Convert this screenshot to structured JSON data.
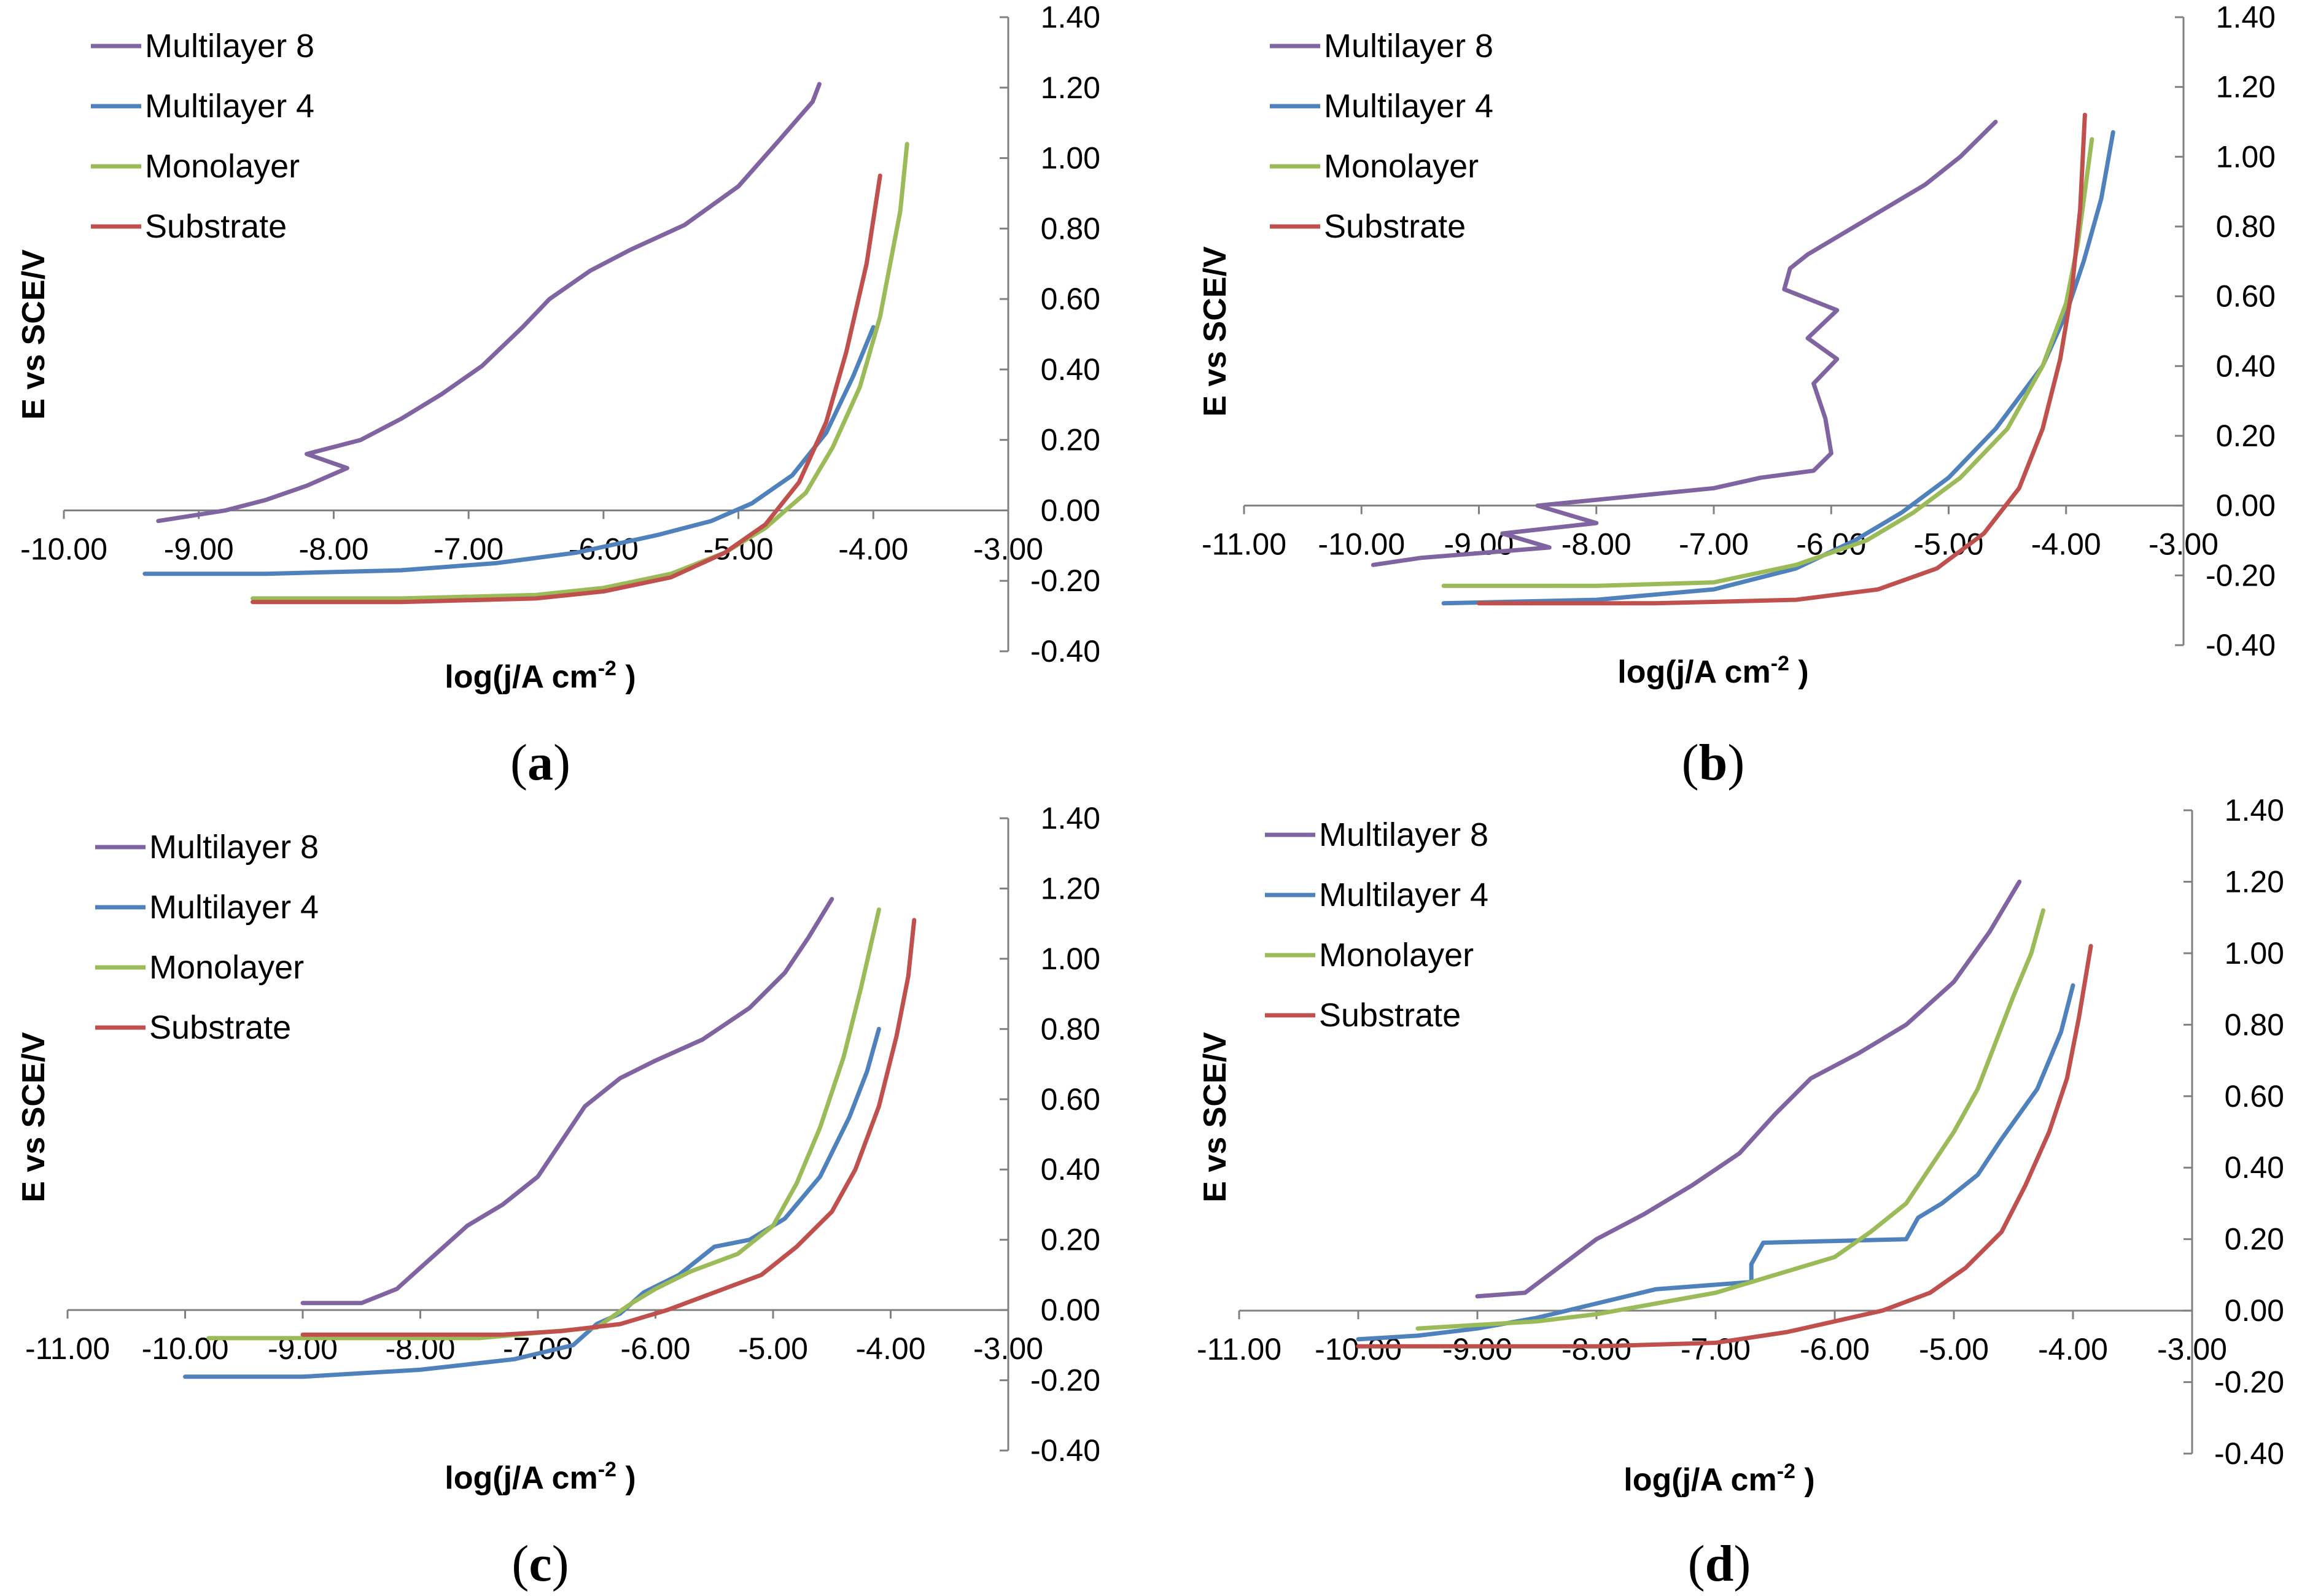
{
  "chart_data": [
    {
      "type": "line",
      "panel_label": "a",
      "xlabel": "log(j/A cm",
      "xlabel_superscript": "-2",
      "ylabel": "E vs SCE/V",
      "xlim": [
        -10.0,
        -3.0
      ],
      "ylim": [
        -0.4,
        1.4
      ],
      "x_ticks": [
        "-10.00",
        "-9.00",
        "-8.00",
        "-7.00",
        "-6.00",
        "-5.00",
        "-4.00",
        "-3.00"
      ],
      "y_ticks": [
        "-0.40",
        "-0.20",
        "0.00",
        "0.20",
        "0.40",
        "0.60",
        "0.80",
        "1.00",
        "1.20",
        "1.40"
      ],
      "legend_position": "top-left",
      "series": [
        {
          "name": "Multilayer 8",
          "color": "#8064a2",
          "x": [
            -9.3,
            -8.8,
            -8.5,
            -8.2,
            -7.9,
            -8.2,
            -7.8,
            -7.5,
            -7.2,
            -6.9,
            -6.6,
            -6.4,
            -6.1,
            -5.8,
            -5.4,
            -5.0,
            -4.7,
            -4.45,
            -4.4
          ],
          "y": [
            -0.03,
            0.0,
            0.03,
            0.07,
            0.12,
            0.16,
            0.2,
            0.26,
            0.33,
            0.41,
            0.52,
            0.6,
            0.68,
            0.74,
            0.81,
            0.92,
            1.05,
            1.16,
            1.21
          ]
        },
        {
          "name": "Multilayer 4",
          "color": "#4f81bd",
          "x": [
            -9.4,
            -8.5,
            -7.5,
            -6.8,
            -6.2,
            -5.6,
            -5.2,
            -4.9,
            -4.6,
            -4.35,
            -4.15,
            -4.0
          ],
          "y": [
            -0.18,
            -0.18,
            -0.17,
            -0.15,
            -0.12,
            -0.07,
            -0.03,
            0.02,
            0.1,
            0.22,
            0.38,
            0.52
          ]
        },
        {
          "name": "Monolayer",
          "color": "#9bbb59",
          "x": [
            -8.6,
            -7.5,
            -6.5,
            -6.0,
            -5.5,
            -5.1,
            -4.8,
            -4.5,
            -4.3,
            -4.1,
            -3.95,
            -3.8,
            -3.75
          ],
          "y": [
            -0.25,
            -0.25,
            -0.24,
            -0.22,
            -0.18,
            -0.12,
            -0.05,
            0.05,
            0.18,
            0.35,
            0.55,
            0.85,
            1.04
          ]
        },
        {
          "name": "Substrate",
          "color": "#c0504d",
          "x": [
            -8.6,
            -7.5,
            -6.5,
            -6.0,
            -5.5,
            -5.1,
            -4.8,
            -4.55,
            -4.35,
            -4.2,
            -4.05,
            -3.95
          ],
          "y": [
            -0.26,
            -0.26,
            -0.25,
            -0.23,
            -0.19,
            -0.12,
            -0.04,
            0.08,
            0.25,
            0.45,
            0.7,
            0.95
          ]
        }
      ]
    },
    {
      "type": "line",
      "panel_label": "b",
      "xlabel": "log(j/A cm",
      "xlabel_superscript": "-2",
      "ylabel": "E vs SCE/V",
      "xlim": [
        -11.0,
        -3.0
      ],
      "ylim": [
        -0.4,
        1.4
      ],
      "x_ticks": [
        "-11.00",
        "-10.00",
        "-9.00",
        "-8.00",
        "-7.00",
        "-6.00",
        "-5.00",
        "-4.00",
        "-3.00"
      ],
      "y_ticks": [
        "-0.40",
        "-0.20",
        "0.00",
        "0.20",
        "0.40",
        "0.60",
        "0.80",
        "1.00",
        "1.20",
        "1.40"
      ],
      "legend_position": "top-left",
      "series": [
        {
          "name": "Multilayer 8",
          "color": "#8064a2",
          "x": [
            -9.9,
            -9.5,
            -8.4,
            -8.8,
            -8.0,
            -8.5,
            -7.0,
            -6.6,
            -6.15,
            -6.0,
            -6.05,
            -6.15,
            -5.95,
            -6.2,
            -5.95,
            -6.4,
            -6.35,
            -6.2,
            -5.9,
            -5.6,
            -5.2,
            -4.9,
            -4.6
          ],
          "y": [
            -0.17,
            -0.15,
            -0.12,
            -0.08,
            -0.05,
            0.0,
            0.05,
            0.08,
            0.1,
            0.15,
            0.25,
            0.35,
            0.42,
            0.48,
            0.56,
            0.62,
            0.68,
            0.72,
            0.78,
            0.84,
            0.92,
            1.0,
            1.1
          ]
        },
        {
          "name": "Multilayer 4",
          "color": "#4f81bd",
          "x": [
            -9.3,
            -8.0,
            -7.0,
            -6.3,
            -5.8,
            -5.4,
            -5.0,
            -4.6,
            -4.2,
            -4.0,
            -3.85,
            -3.7,
            -3.6
          ],
          "y": [
            -0.28,
            -0.27,
            -0.24,
            -0.18,
            -0.1,
            -0.02,
            0.08,
            0.22,
            0.4,
            0.55,
            0.7,
            0.88,
            1.07
          ]
        },
        {
          "name": "Monolayer",
          "color": "#9bbb59",
          "x": [
            -9.3,
            -8.0,
            -7.0,
            -6.3,
            -5.7,
            -5.3,
            -4.9,
            -4.5,
            -4.2,
            -4.0,
            -3.9,
            -3.78
          ],
          "y": [
            -0.23,
            -0.23,
            -0.22,
            -0.17,
            -0.1,
            -0.02,
            0.08,
            0.22,
            0.4,
            0.58,
            0.75,
            1.05
          ]
        },
        {
          "name": "Substrate",
          "color": "#c0504d",
          "x": [
            -9.0,
            -7.5,
            -6.3,
            -5.6,
            -5.1,
            -4.7,
            -4.4,
            -4.2,
            -4.05,
            -3.95,
            -3.88,
            -3.84
          ],
          "y": [
            -0.28,
            -0.28,
            -0.27,
            -0.24,
            -0.18,
            -0.08,
            0.05,
            0.22,
            0.42,
            0.62,
            0.85,
            1.12
          ]
        }
      ]
    },
    {
      "type": "line",
      "panel_label": "c",
      "xlabel": "log(j/A cm",
      "xlabel_superscript": "-2",
      "ylabel": "E vs SCE/V",
      "xlim": [
        -11.0,
        -3.0
      ],
      "ylim": [
        -0.4,
        1.4
      ],
      "x_ticks": [
        "-11.00",
        "-10.00",
        "-9.00",
        "-8.00",
        "-7.00",
        "-6.00",
        "-5.00",
        "-4.00",
        "-3.00"
      ],
      "y_ticks": [
        "-0.40",
        "-0.20",
        "0.00",
        "0.20",
        "0.40",
        "0.60",
        "0.80",
        "1.00",
        "1.20",
        "1.40"
      ],
      "legend_position": "top-left",
      "series": [
        {
          "name": "Multilayer 8",
          "color": "#8064a2",
          "x": [
            -9.0,
            -8.5,
            -8.2,
            -8.0,
            -7.8,
            -7.6,
            -7.3,
            -7.0,
            -6.8,
            -6.6,
            -6.3,
            -6.0,
            -5.6,
            -5.2,
            -4.9,
            -4.7,
            -4.5
          ],
          "y": [
            0.02,
            0.02,
            0.06,
            0.12,
            0.18,
            0.24,
            0.3,
            0.38,
            0.48,
            0.58,
            0.66,
            0.71,
            0.77,
            0.86,
            0.96,
            1.06,
            1.17
          ]
        },
        {
          "name": "Multilayer 4",
          "color": "#4f81bd",
          "x": [
            -10.0,
            -9.0,
            -8.0,
            -7.2,
            -6.7,
            -6.5,
            -6.3,
            -6.1,
            -5.8,
            -5.5,
            -5.2,
            -4.9,
            -4.6,
            -4.35,
            -4.2,
            -4.1
          ],
          "y": [
            -0.19,
            -0.19,
            -0.17,
            -0.14,
            -0.1,
            -0.04,
            -0.01,
            0.05,
            0.1,
            0.18,
            0.2,
            0.26,
            0.38,
            0.55,
            0.68,
            0.8
          ]
        },
        {
          "name": "Monolayer",
          "color": "#9bbb59",
          "x": [
            -9.8,
            -8.5,
            -7.5,
            -6.5,
            -6.2,
            -6.0,
            -5.7,
            -5.3,
            -5.0,
            -4.8,
            -4.6,
            -4.4,
            -4.25,
            -4.1
          ],
          "y": [
            -0.08,
            -0.08,
            -0.08,
            -0.05,
            0.02,
            0.06,
            0.11,
            0.16,
            0.24,
            0.36,
            0.52,
            0.72,
            0.92,
            1.14
          ]
        },
        {
          "name": "Substrate",
          "color": "#c0504d",
          "x": [
            -9.0,
            -8.0,
            -7.3,
            -6.8,
            -6.3,
            -5.9,
            -5.5,
            -5.1,
            -4.8,
            -4.5,
            -4.3,
            -4.1,
            -3.95,
            -3.85,
            -3.8
          ],
          "y": [
            -0.07,
            -0.07,
            -0.07,
            -0.06,
            -0.04,
            0.0,
            0.05,
            0.1,
            0.18,
            0.28,
            0.4,
            0.58,
            0.78,
            0.95,
            1.11
          ]
        }
      ]
    },
    {
      "type": "line",
      "panel_label": "d",
      "xlabel": "log(j/A cm",
      "xlabel_superscript": "-2",
      "ylabel": "E vs SCE/V",
      "xlim": [
        -11.0,
        -3.0
      ],
      "ylim": [
        -0.4,
        1.4
      ],
      "x_ticks": [
        "-11.00",
        "-10.00",
        "-9.00",
        "-8.00",
        "-7.00",
        "-6.00",
        "-5.00",
        "-4.00",
        "-3.00"
      ],
      "y_ticks": [
        "-0.40",
        "-0.20",
        "0.00",
        "0.20",
        "0.40",
        "0.60",
        "0.80",
        "1.00",
        "1.20",
        "1.40"
      ],
      "legend_position": "top-left",
      "series": [
        {
          "name": "Multilayer 8",
          "color": "#8064a2",
          "x": [
            -9.0,
            -8.6,
            -8.4,
            -8.2,
            -8.0,
            -7.6,
            -7.2,
            -6.8,
            -6.5,
            -6.2,
            -5.8,
            -5.4,
            -5.0,
            -4.7,
            -4.45
          ],
          "y": [
            0.04,
            0.05,
            0.1,
            0.15,
            0.2,
            0.27,
            0.35,
            0.44,
            0.55,
            0.65,
            0.72,
            0.8,
            0.92,
            1.06,
            1.2
          ]
        },
        {
          "name": "Multilayer 4",
          "color": "#4f81bd",
          "x": [
            -10.0,
            -9.5,
            -9.0,
            -8.5,
            -8.0,
            -7.5,
            -6.7,
            -6.7,
            -6.6,
            -5.4,
            -5.3,
            -5.1,
            -4.8,
            -4.6,
            -4.3,
            -4.1,
            -4.0
          ],
          "y": [
            -0.08,
            -0.07,
            -0.05,
            -0.02,
            0.02,
            0.06,
            0.08,
            0.13,
            0.19,
            0.2,
            0.26,
            0.3,
            0.38,
            0.48,
            0.62,
            0.78,
            0.91
          ]
        },
        {
          "name": "Monolayer",
          "color": "#9bbb59",
          "x": [
            -9.5,
            -9.0,
            -8.5,
            -8.0,
            -7.5,
            -7.0,
            -6.5,
            -6.0,
            -5.7,
            -5.4,
            -5.2,
            -5.0,
            -4.8,
            -4.65,
            -4.5,
            -4.35,
            -4.25
          ],
          "y": [
            -0.05,
            -0.04,
            -0.03,
            -0.01,
            0.02,
            0.05,
            0.1,
            0.15,
            0.22,
            0.3,
            0.4,
            0.5,
            0.62,
            0.75,
            0.88,
            1.0,
            1.12
          ]
        },
        {
          "name": "Substrate",
          "color": "#c0504d",
          "x": [
            -10.0,
            -9.0,
            -8.0,
            -7.0,
            -6.4,
            -6.0,
            -5.6,
            -5.2,
            -4.9,
            -4.6,
            -4.4,
            -4.2,
            -4.05,
            -3.95,
            -3.85
          ],
          "y": [
            -0.1,
            -0.1,
            -0.1,
            -0.09,
            -0.06,
            -0.03,
            0.0,
            0.05,
            0.12,
            0.22,
            0.35,
            0.5,
            0.65,
            0.82,
            1.02
          ]
        }
      ]
    }
  ]
}
